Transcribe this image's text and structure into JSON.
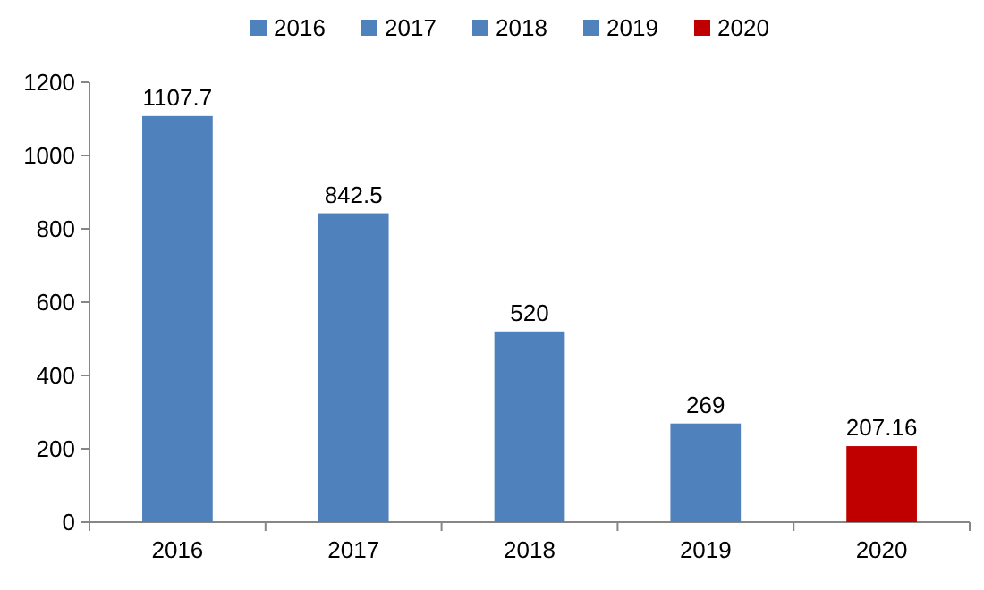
{
  "chart_data": {
    "type": "bar",
    "categories": [
      "2016",
      "2017",
      "2018",
      "2019",
      "2020"
    ],
    "stacked": true,
    "series": [
      {
        "name": "2016",
        "color": "#4f81bd",
        "values": [
          1107.7,
          null,
          null,
          null,
          null
        ]
      },
      {
        "name": "2017",
        "color": "#4f81bd",
        "values": [
          null,
          842.5,
          null,
          null,
          null
        ]
      },
      {
        "name": "2018",
        "color": "#4f81bd",
        "values": [
          null,
          null,
          520,
          null,
          null
        ]
      },
      {
        "name": "2019",
        "color": "#4f81bd",
        "values": [
          null,
          null,
          null,
          269,
          null
        ]
      },
      {
        "name": "2020",
        "color": "#c00000",
        "values": [
          null,
          null,
          null,
          null,
          207.16
        ]
      }
    ],
    "ylim": [
      0,
      1200
    ],
    "yticks": [
      0,
      200,
      400,
      600,
      800,
      1000,
      1200
    ],
    "data_labels": true,
    "legend": "top",
    "grid": false
  }
}
